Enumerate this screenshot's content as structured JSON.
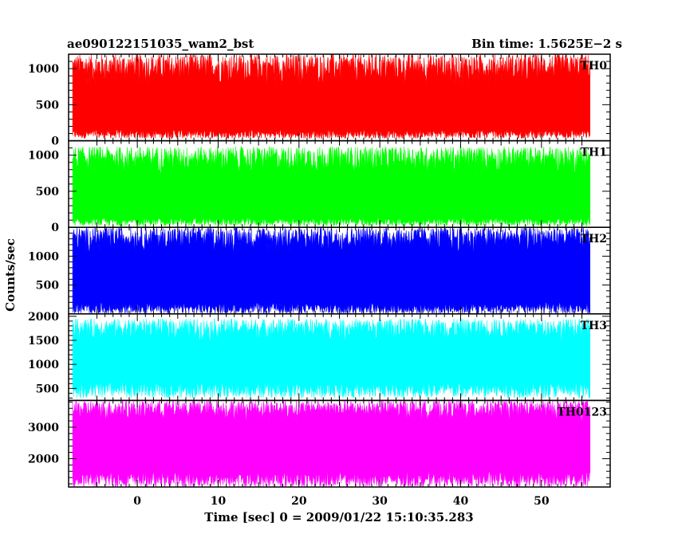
{
  "chart_data": {
    "type": "line",
    "title": "ae090122151035_wam2_bst",
    "bin_time_label": "Bin time: 1.5625E−2 s",
    "xlabel": "Time [sec] 0 = 2009/01/22 15:10:35.283",
    "ylabel": "Counts/sec",
    "xlim": [
      -8.5,
      58.5
    ],
    "x_data_range": [
      -8,
      56
    ],
    "x_ticks": [
      "0",
      "10",
      "20",
      "30",
      "40",
      "50"
    ],
    "grid": false,
    "panels": [
      {
        "name": "TH0",
        "color": "#ff0000",
        "ylim": [
          0,
          1200
        ],
        "y_ticks": [
          "0",
          "500",
          "1000"
        ],
        "band": {
          "low_min": 30,
          "low_max": 160,
          "high_min": 750,
          "high_max": 1200
        }
      },
      {
        "name": "TH1",
        "color": "#00ff00",
        "ylim": [
          0,
          1200
        ],
        "y_ticks": [
          "0",
          "500",
          "1000"
        ],
        "band": {
          "low_min": 20,
          "low_max": 140,
          "high_min": 720,
          "high_max": 1120
        }
      },
      {
        "name": "TH2",
        "color": "#0000ff",
        "ylim": [
          0,
          1500
        ],
        "y_ticks": [
          "500",
          "1000"
        ],
        "band": {
          "low_min": 0,
          "low_max": 200,
          "high_min": 1050,
          "high_max": 1500
        }
      },
      {
        "name": "TH3",
        "color": "#00ffff",
        "ylim": [
          250,
          2050
        ],
        "y_ticks": [
          "500",
          "1000",
          "1500",
          "2000"
        ],
        "band": {
          "low_min": 300,
          "low_max": 650,
          "high_min": 1450,
          "high_max": 1950
        }
      },
      {
        "name": "TH0123",
        "color": "#ff00ff",
        "ylim": [
          1100,
          3850
        ],
        "y_ticks": [
          "2000",
          "3000"
        ],
        "band": {
          "low_min": 1100,
          "low_max": 1600,
          "high_min": 3150,
          "high_max": 3850
        }
      }
    ]
  }
}
